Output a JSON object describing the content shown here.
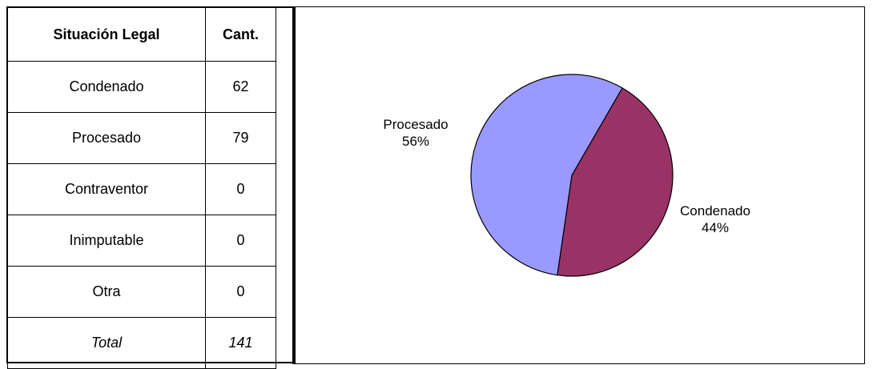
{
  "table": {
    "headers": [
      "Situación Legal",
      "Cant."
    ],
    "rows": [
      [
        "Condenado",
        "62"
      ],
      [
        "Procesado",
        "79"
      ],
      [
        "Contraventor",
        "0"
      ],
      [
        "Inimputable",
        "0"
      ],
      [
        "Otra",
        "0"
      ]
    ],
    "total": [
      "Total",
      "141"
    ]
  },
  "chart_data": {
    "type": "pie",
    "categories": [
      "Procesado",
      "Condenado"
    ],
    "values": [
      79,
      62
    ],
    "percent_labels": [
      "56%",
      "44%"
    ],
    "colors": [
      "#9999ff",
      "#993366"
    ],
    "title": ""
  }
}
